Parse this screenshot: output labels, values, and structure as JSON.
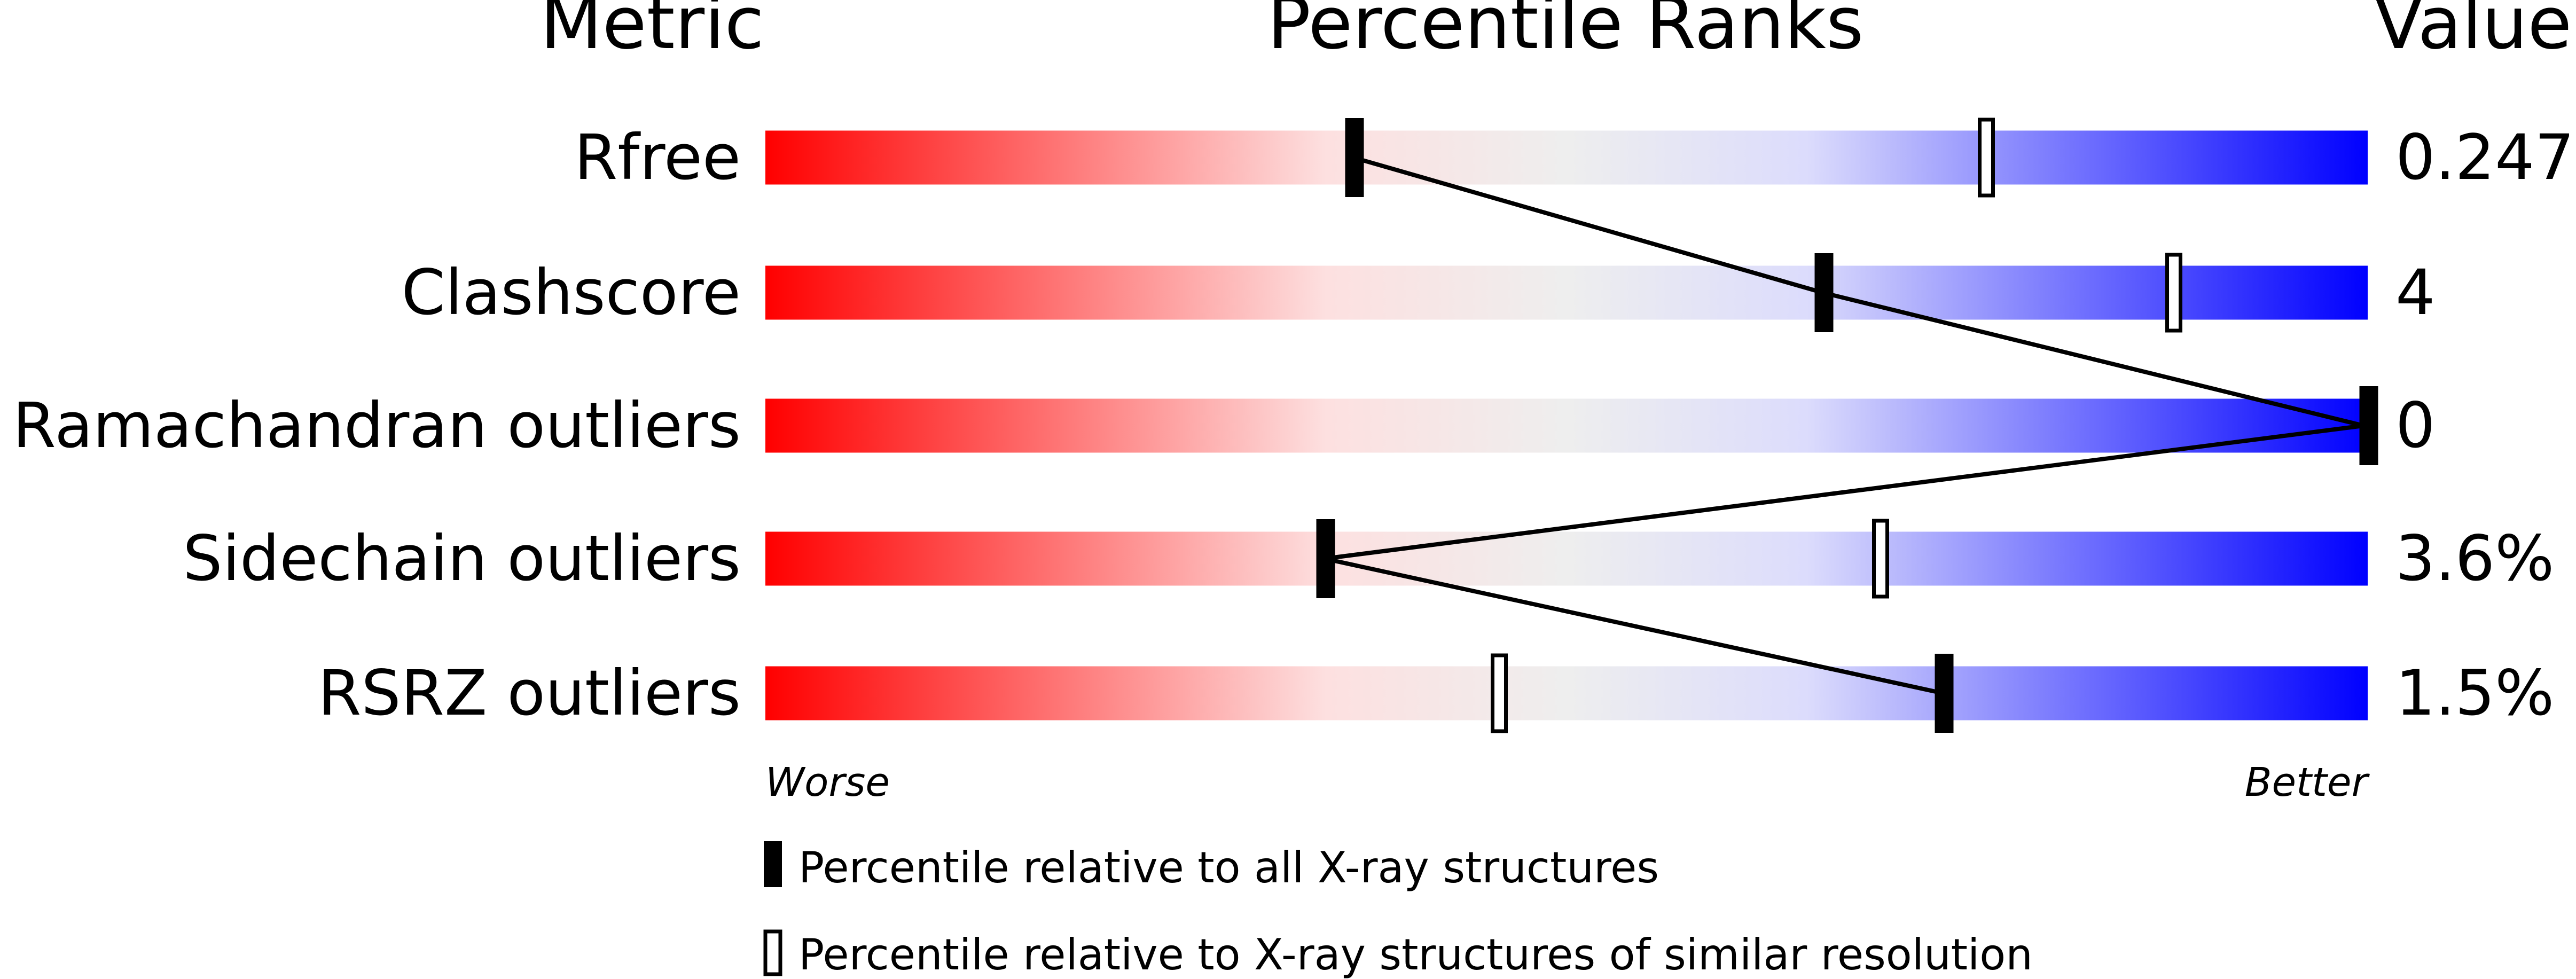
{
  "chart_data": {
    "type": "percentile-bar",
    "headers": {
      "metric": "Metric",
      "ranks": "Percentile Ranks",
      "value": "Value"
    },
    "xlim": [
      0,
      100
    ],
    "rows": [
      {
        "metric": "Rfree",
        "value": "0.247",
        "percentile_all": 36.7,
        "percentile_similar": 76.2
      },
      {
        "metric": "Clashscore",
        "value": "4",
        "percentile_all": 66.0,
        "percentile_similar": 87.9
      },
      {
        "metric": "Ramachandran outliers",
        "value": "0",
        "percentile_all": 100,
        "percentile_similar": 100
      },
      {
        "metric": "Sidechain outliers",
        "value": "3.6%",
        "percentile_all": 34.9,
        "percentile_similar": 69.6
      },
      {
        "metric": "RSRZ outliers",
        "value": "1.5%",
        "percentile_all": 73.5,
        "percentile_similar": 45.8
      }
    ],
    "axis_left_label": "Worse",
    "axis_right_label": "Better",
    "legend": [
      {
        "marker": "filled",
        "label": "Percentile relative to all X-ray structures"
      },
      {
        "marker": "open",
        "label": "Percentile relative to X-ray structures of similar resolution"
      }
    ],
    "colors": {
      "worse": "#ff0000",
      "mid": "#eeeeee",
      "better": "#0000ff",
      "marker": "#000000"
    }
  }
}
